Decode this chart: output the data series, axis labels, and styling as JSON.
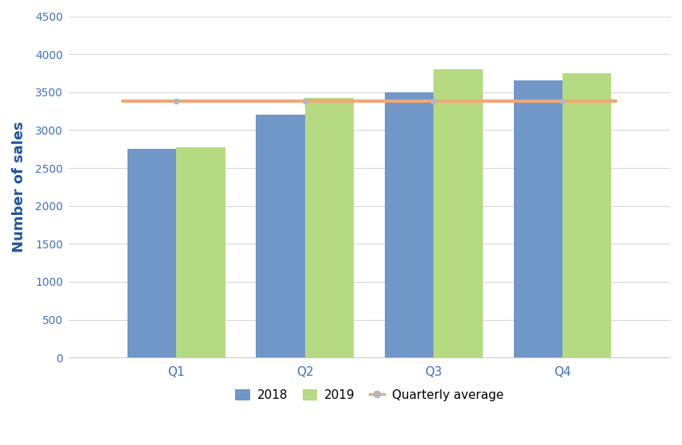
{
  "categories": [
    "Q1",
    "Q2",
    "Q3",
    "Q4"
  ],
  "values_2018": [
    2750,
    3200,
    3500,
    3650
  ],
  "values_2019": [
    2775,
    3425,
    3800,
    3750
  ],
  "quarterly_avg": [
    3380,
    3380,
    3380,
    3380
  ],
  "bar_color_2018": "#7196c8",
  "bar_color_2019": "#b5da82",
  "avg_line_color": "#f0a875",
  "avg_line_marker_color": "#b0b8c0",
  "ylabel": "Number of sales",
  "ylabel_color": "#2155a0",
  "tick_label_color": "#4472c4",
  "ytick_label_color": "#4472c4",
  "ylim": [
    0,
    4500
  ],
  "yticks": [
    0,
    500,
    1000,
    1500,
    2000,
    2500,
    3000,
    3500,
    4000,
    4500
  ],
  "legend_labels": [
    "2018",
    "2019",
    "Quarterly average"
  ],
  "bar_width": 0.38,
  "background_color": "#ffffff",
  "grid_color": "#d8d8d8"
}
